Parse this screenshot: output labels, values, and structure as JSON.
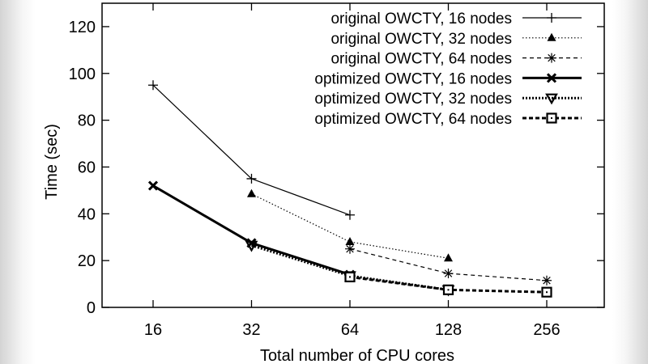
{
  "chart_data": {
    "type": "line",
    "title": "",
    "xlabel": "Total number of CPU cores",
    "ylabel": "Time (sec)",
    "categories": [
      "16",
      "32",
      "64",
      "128",
      "256"
    ],
    "ylim": [
      0,
      130
    ],
    "yticks": [
      0,
      20,
      40,
      60,
      80,
      100,
      120
    ],
    "grid": false,
    "legend_position": "top-right",
    "series": [
      {
        "name": "original OWCTY, 16 nodes",
        "values": [
          95,
          55,
          39.5,
          null,
          null
        ],
        "style": "solid-thin",
        "marker": "plus"
      },
      {
        "name": "original OWCTY, 32 nodes",
        "values": [
          null,
          48.5,
          28,
          21,
          null
        ],
        "style": "dotted-thin",
        "marker": "triangle-up-filled"
      },
      {
        "name": "original OWCTY, 64 nodes",
        "values": [
          null,
          null,
          25,
          14.5,
          11.5
        ],
        "style": "dashed-thin",
        "marker": "asterisk"
      },
      {
        "name": "optimized OWCTY, 16 nodes",
        "values": [
          52,
          27.5,
          14,
          null,
          null
        ],
        "style": "solid-thick",
        "marker": "x"
      },
      {
        "name": "optimized OWCTY, 32 nodes",
        "values": [
          null,
          26.5,
          13.5,
          7.5,
          null
        ],
        "style": "dotted-thick",
        "marker": "triangle-down"
      },
      {
        "name": "optimized OWCTY, 64 nodes",
        "values": [
          null,
          null,
          13,
          7.5,
          6.5
        ],
        "style": "dashed-thick",
        "marker": "square-dot"
      }
    ]
  }
}
